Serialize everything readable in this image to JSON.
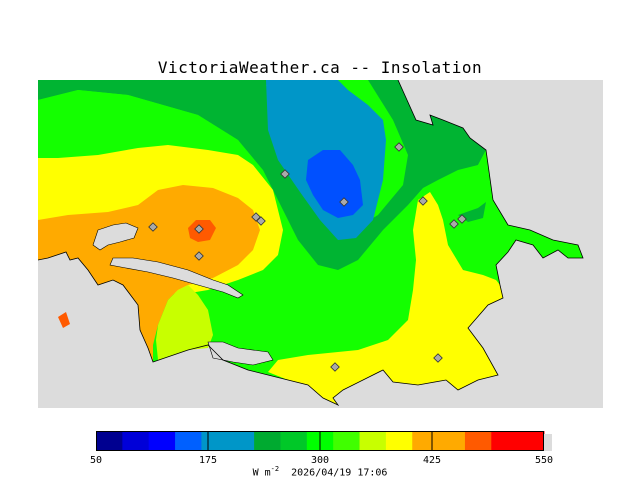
{
  "title": "VictoriaWeather.ca -- Insolation",
  "legend": {
    "ticks": [
      "50",
      "175",
      "300",
      "425",
      "550"
    ],
    "unit_main": "W m",
    "unit_exp": "-2",
    "timestamp": "2026/04/19 17:06",
    "colors": [
      "#000090",
      "#0000d8",
      "#0000ff",
      "#0060ff",
      "#0096c8",
      "#0096c8",
      "#00aa30",
      "#00c828",
      "#00ff00",
      "#40ff00",
      "#c8ff00",
      "#ffff00",
      "#ffaa00",
      "#ffaa00",
      "#ff5a00",
      "#ff0000",
      "#ff0000"
    ]
  },
  "map_colors": {
    "background": "#dcdcdc",
    "dark_green": "#00b432",
    "green": "#14ff00",
    "yellow_green": "#c8ff00",
    "yellow": "#ffff00",
    "orange": "#ffaa00",
    "red_orange": "#ff5a00",
    "teal": "#0096c8",
    "blue": "#0050ff"
  },
  "stations": [
    "s1",
    "s2",
    "s3",
    "s4",
    "s5",
    "s6",
    "s7",
    "s8",
    "s9",
    "s10",
    "s11",
    "s12",
    "s13"
  ]
}
